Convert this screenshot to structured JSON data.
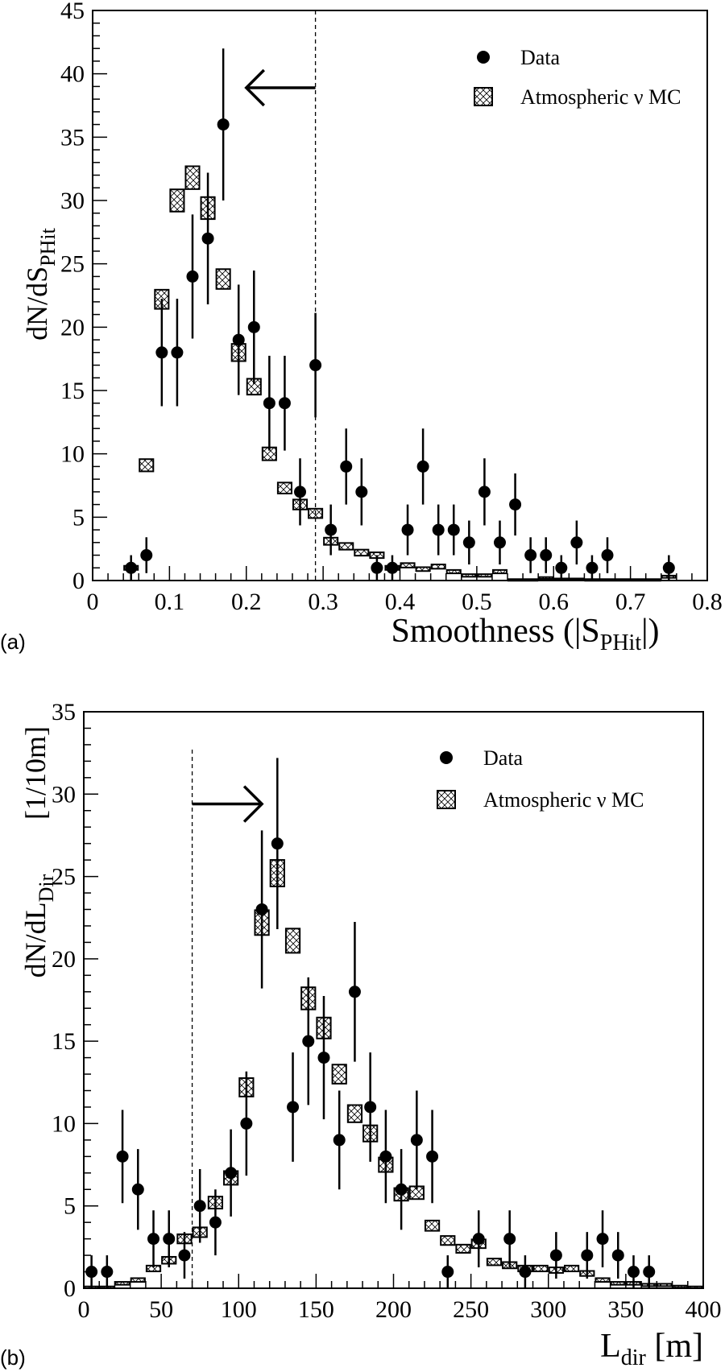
{
  "chart_data": [
    {
      "type": "scatter",
      "panel_label": "(a)",
      "xlabel_main": "Smoothness (|S",
      "xlabel_sub": "PHit",
      "xlabel_end": "|)",
      "ylabel_main": "dN/dS",
      "ylabel_sub": "PHit",
      "xlim": [
        0,
        0.8
      ],
      "ylim": [
        0,
        45
      ],
      "xticks": [
        0,
        0.1,
        0.2,
        0.3,
        0.4,
        0.5,
        0.6,
        0.7,
        0.8
      ],
      "xtick_labels": [
        "0",
        "0.1",
        "0.2",
        "0.3",
        "0.4",
        "0.5",
        "0.6",
        "0.7",
        "0.8"
      ],
      "yticks": [
        0,
        5,
        10,
        15,
        20,
        25,
        30,
        35,
        40,
        45
      ],
      "ytick_labels": [
        "0",
        "5",
        "10",
        "15",
        "20",
        "25",
        "30",
        "35",
        "40",
        "45"
      ],
      "bin_width": 0.02,
      "cut": 0.29,
      "arrow": {
        "from": 0.29,
        "to": 0.2,
        "y": 38.9,
        "direction": "left"
      },
      "legend": {
        "placement": "top-right",
        "data_label": "Data",
        "mc_label": "Atmospheric ν MC"
      },
      "series": [
        {
          "name": "Data",
          "kind": "points_with_sqrtN_errors",
          "x": [
            0.05,
            0.07,
            0.09,
            0.11,
            0.13,
            0.15,
            0.17,
            0.19,
            0.21,
            0.23,
            0.25,
            0.27,
            0.29,
            0.31,
            0.33,
            0.35,
            0.37,
            0.39,
            0.41,
            0.43,
            0.45,
            0.47,
            0.49,
            0.51,
            0.53,
            0.55,
            0.57,
            0.59,
            0.61,
            0.63,
            0.65,
            0.67,
            0.75
          ],
          "y": [
            1,
            2,
            18,
            18,
            24,
            27,
            36,
            19,
            20,
            14,
            14,
            7,
            17,
            4,
            9,
            7,
            1,
            1,
            4,
            9,
            4,
            4,
            3,
            7,
            3,
            6,
            2,
            2,
            1,
            3,
            1,
            2,
            1
          ]
        },
        {
          "name": "Atmospheric ν MC",
          "kind": "hatched_boxes",
          "x": [
            0.05,
            0.07,
            0.09,
            0.11,
            0.13,
            0.15,
            0.17,
            0.19,
            0.21,
            0.23,
            0.25,
            0.27,
            0.29,
            0.31,
            0.33,
            0.35,
            0.37,
            0.39,
            0.41,
            0.43,
            0.45,
            0.47,
            0.49,
            0.51,
            0.53,
            0.55,
            0.57,
            0.59,
            0.61,
            0.63,
            0.65,
            0.67,
            0.69,
            0.71,
            0.73,
            0.75
          ],
          "y": [
            1,
            9.1,
            22.2,
            30,
            31.8,
            29.4,
            23.8,
            18,
            15.3,
            10,
            7.3,
            6,
            5.3,
            3.1,
            2.7,
            2.2,
            2,
            1,
            1.2,
            0.9,
            1.1,
            0.7,
            0.4,
            0.4,
            0.7,
            0.05,
            0.05,
            0.2,
            0.1,
            0.1,
            0.05,
            0.05,
            0.05,
            0.05,
            0.05,
            0.3
          ]
        }
      ]
    },
    {
      "type": "scatter",
      "panel_label": "(b)",
      "xlabel_main": "L",
      "xlabel_sub": "dir",
      "xlabel_end": " [m]",
      "ylabel_main": "dN/dL",
      "ylabel_sub": "Dir",
      "ylabel_units": "[1/10m]",
      "xlim": [
        0,
        400
      ],
      "ylim": [
        0,
        35
      ],
      "xticks": [
        0,
        50,
        100,
        150,
        200,
        250,
        300,
        350,
        400
      ],
      "xtick_labels": [
        "0",
        "50",
        "100",
        "150",
        "200",
        "250",
        "300",
        "350",
        "400"
      ],
      "yticks": [
        0,
        5,
        10,
        15,
        20,
        25,
        30,
        35
      ],
      "ytick_labels": [
        "0",
        "5",
        "10",
        "15",
        "20",
        "25",
        "30",
        "35"
      ],
      "bin_width": 10,
      "cut": 70,
      "arrow": {
        "from": 70,
        "to": 115,
        "y": 29.4,
        "direction": "right"
      },
      "legend": {
        "placement": "top-right",
        "data_label": "Data",
        "mc_label": "Atmospheric ν MC"
      },
      "series": [
        {
          "name": "Data",
          "kind": "points_with_sqrtN_errors",
          "x": [
            5,
            15,
            25,
            35,
            45,
            55,
            65,
            75,
            85,
            95,
            105,
            115,
            125,
            135,
            145,
            155,
            165,
            175,
            185,
            195,
            205,
            215,
            225,
            235,
            255,
            275,
            285,
            305,
            325,
            335,
            345,
            355,
            365
          ],
          "y": [
            1,
            1,
            8,
            6,
            3,
            3,
            2,
            5,
            4,
            7,
            10,
            23,
            27,
            11,
            15,
            14,
            9,
            18,
            11,
            8,
            6,
            9,
            8,
            1,
            3,
            3,
            1,
            2,
            2,
            3,
            2,
            1,
            1
          ]
        },
        {
          "name": "Atmospheric ν MC",
          "kind": "hatched_boxes",
          "x": [
            5,
            15,
            25,
            35,
            45,
            55,
            65,
            75,
            85,
            95,
            105,
            115,
            125,
            135,
            145,
            155,
            165,
            175,
            185,
            195,
            205,
            215,
            225,
            235,
            245,
            255,
            265,
            275,
            285,
            295,
            305,
            315,
            325,
            335,
            345,
            355,
            365,
            375,
            385,
            395
          ],
          "y": [
            0.05,
            0.05,
            0.3,
            0.5,
            1.2,
            1.7,
            3,
            3.4,
            5.2,
            6.7,
            12.2,
            22.2,
            25.2,
            21.1,
            17.6,
            15.8,
            13,
            10.6,
            9.4,
            7.5,
            5.7,
            5.8,
            3.8,
            2.9,
            2.4,
            2.7,
            1.6,
            1.4,
            1.2,
            1.2,
            1.1,
            1.2,
            0.9,
            0.5,
            0.3,
            0.3,
            0.2,
            0.2,
            0.1,
            0.05
          ]
        }
      ]
    }
  ]
}
